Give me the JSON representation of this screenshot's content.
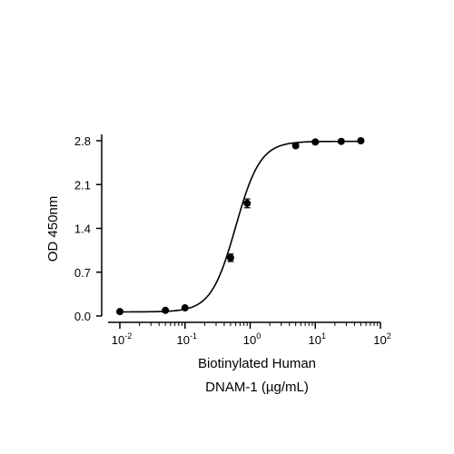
{
  "chart_data": {
    "type": "scatter",
    "title": "",
    "xlabel_line1": "Biotinylated Human",
    "xlabel_line2": "DNAM-1 (µg/mL)",
    "ylabel": "OD 450nm",
    "x_scale": "log",
    "xlim": [
      0.01,
      100
    ],
    "ylim": [
      0,
      2.8
    ],
    "x_ticks": [
      {
        "base": "10",
        "exp": "-2"
      },
      {
        "base": "10",
        "exp": "-1"
      },
      {
        "base": "10",
        "exp": "0"
      },
      {
        "base": "10",
        "exp": "1"
      },
      {
        "base": "10",
        "exp": "2"
      }
    ],
    "y_ticks": [
      "0.0",
      "0.7",
      "1.4",
      "2.1",
      "2.8"
    ],
    "grid": false,
    "series": [
      {
        "points": [
          {
            "x": 0.01,
            "y": 0.07,
            "err": 0.01
          },
          {
            "x": 0.05,
            "y": 0.09,
            "err": 0.01
          },
          {
            "x": 0.1,
            "y": 0.13,
            "err": 0.01
          },
          {
            "x": 0.5,
            "y": 0.93,
            "err": 0.06
          },
          {
            "x": 0.9,
            "y": 1.8,
            "err": 0.07
          },
          {
            "x": 5,
            "y": 2.72,
            "err": 0.02
          },
          {
            "x": 10,
            "y": 2.78,
            "err": 0.02
          },
          {
            "x": 25,
            "y": 2.79,
            "err": 0.02
          },
          {
            "x": 50,
            "y": 2.8,
            "err": 0.02
          }
        ],
        "fit": {
          "bottom": 0.065,
          "top": 2.79,
          "ec50": 0.6,
          "hill": 2.3
        }
      }
    ]
  }
}
